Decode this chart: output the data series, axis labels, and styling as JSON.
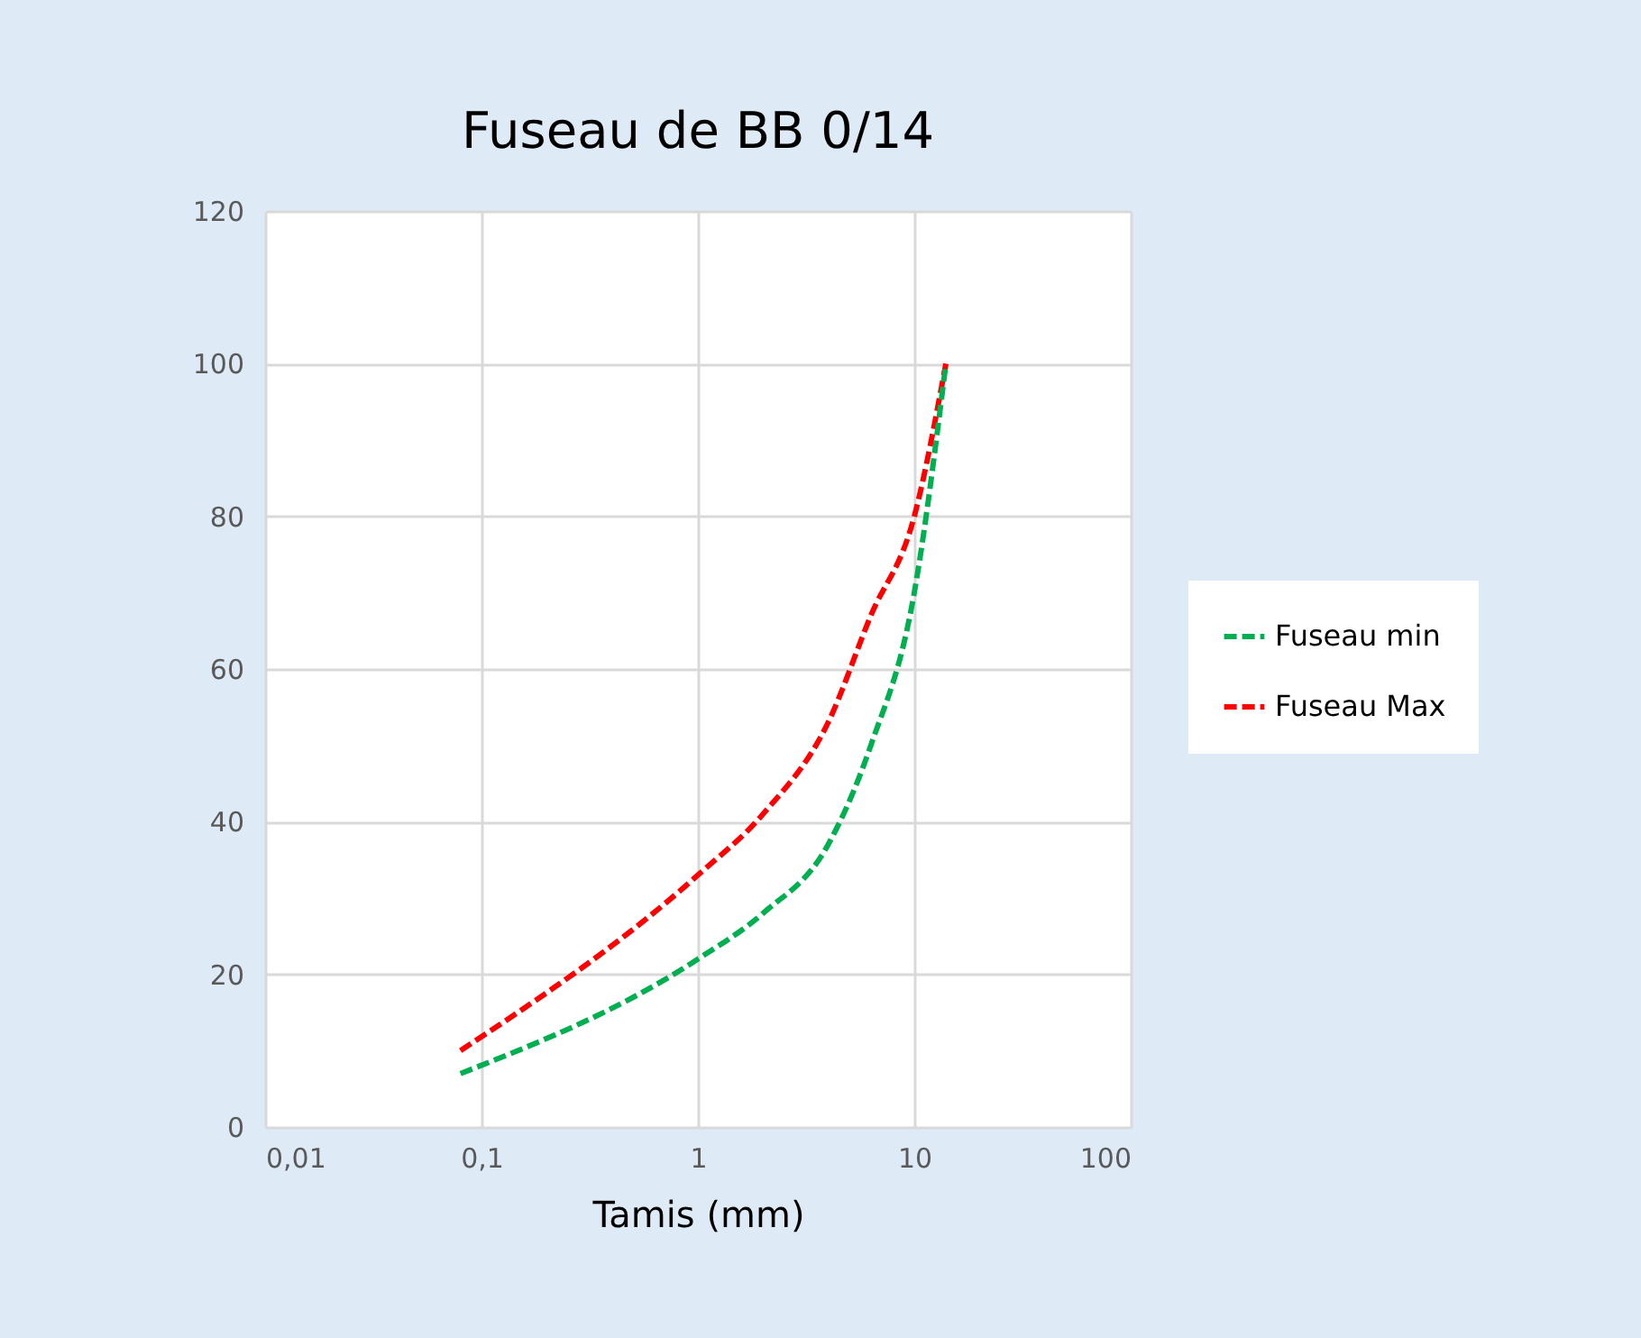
{
  "chart_data": {
    "type": "line",
    "title": "Fuseau de BB 0/14",
    "xlabel": "Tamis (mm)",
    "log": "x",
    "xlim": [
      0.01,
      100
    ],
    "xticks": [
      {
        "value": 0.01,
        "label": "0,01"
      },
      {
        "value": 0.1,
        "label": "0,1"
      },
      1,
      10,
      100
    ],
    "ylim": [
      0,
      120
    ],
    "yticks": [
      0,
      20,
      40,
      60,
      80,
      100,
      120
    ],
    "grid": true,
    "legend": "right",
    "marker": "none",
    "line_style": "dashed",
    "x": [
      0.08,
      1,
      2,
      4,
      6.3,
      10,
      14
    ],
    "series": [
      {
        "name": "Fuseau min",
        "color": "#00b050",
        "values": [
          7,
          22,
          28,
          37,
          50,
          70,
          100
        ]
      },
      {
        "name": "Fuseau Max",
        "color": "#ff0000",
        "values": [
          10,
          33,
          41,
          53,
          67,
          80,
          100
        ]
      }
    ]
  }
}
